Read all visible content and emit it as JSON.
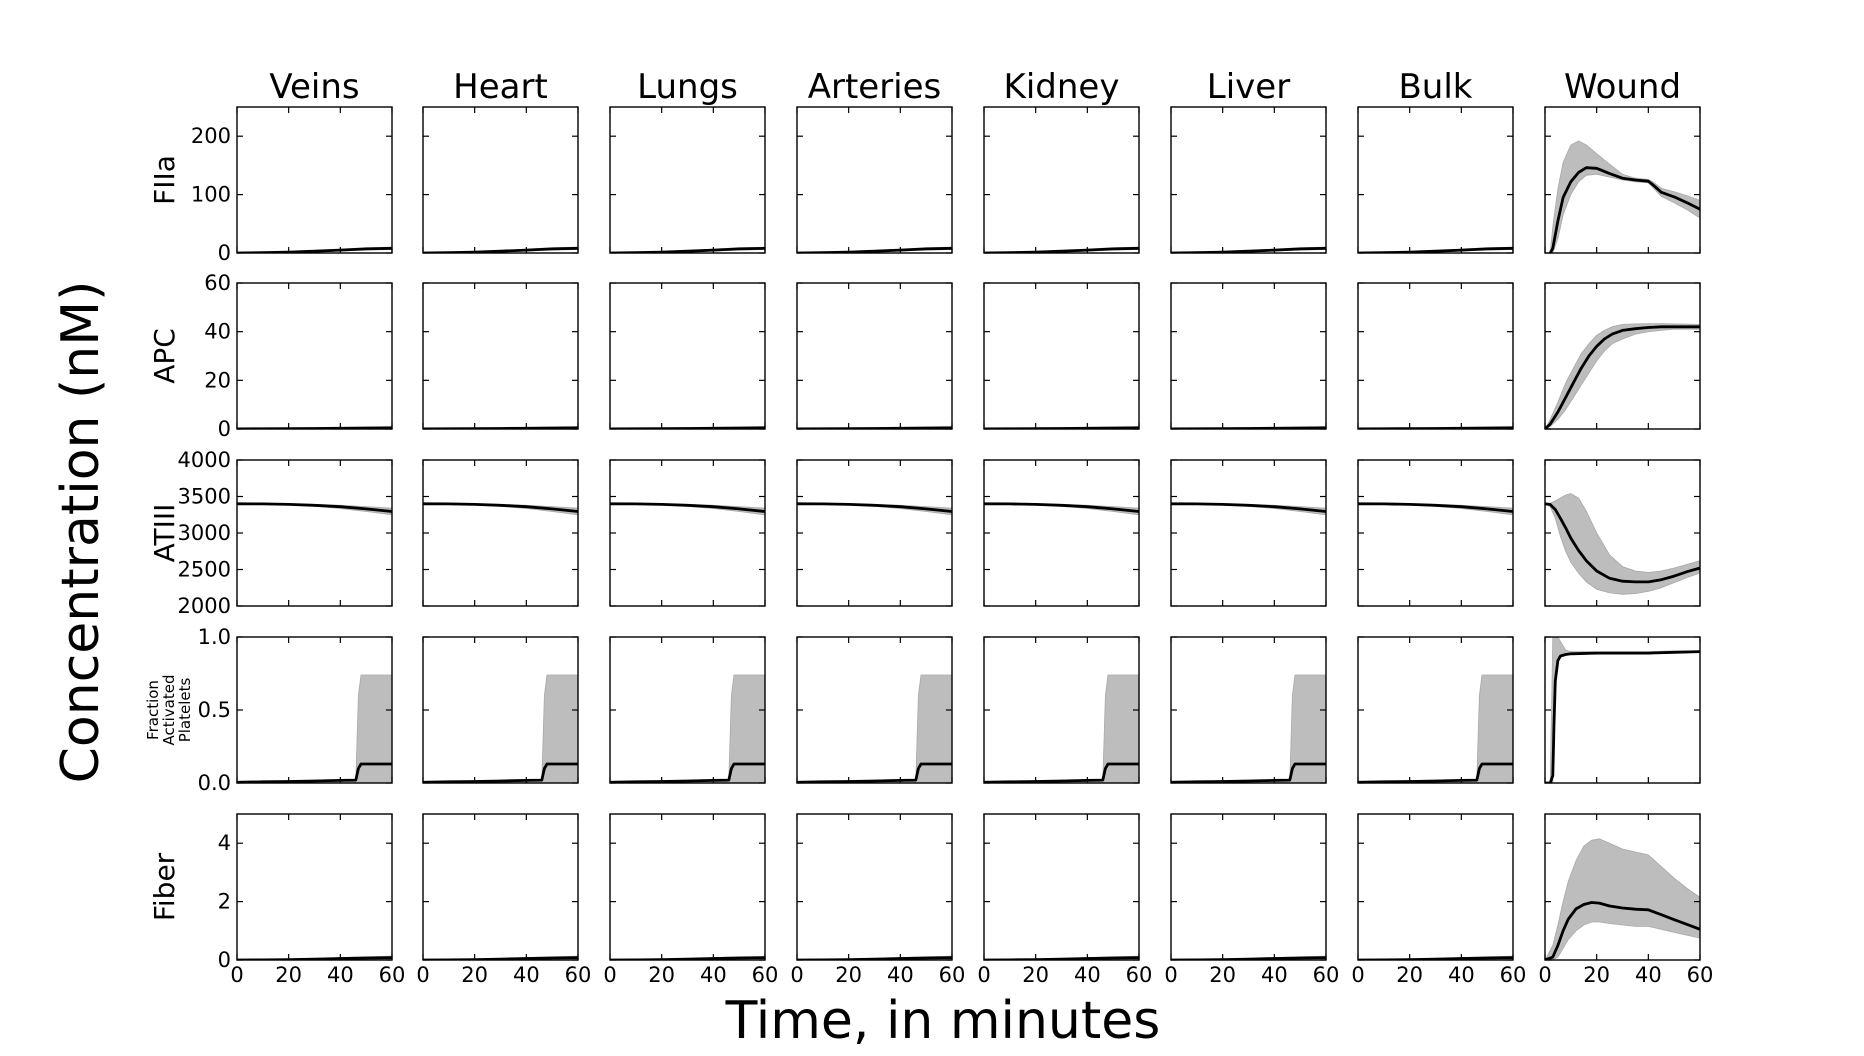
{
  "chart_data": {
    "type": "line",
    "title": "",
    "xlabel": "Time, in minutes",
    "ylabel": "Concentration (nM)",
    "columns": [
      "Veins",
      "Heart",
      "Lungs",
      "Arteries",
      "Kidney",
      "Liver",
      "Bulk",
      "Wound"
    ],
    "xlim": [
      0,
      60
    ],
    "x_ticks": [
      0,
      20,
      40,
      60
    ],
    "x_tick_labels": [
      "0",
      "20",
      "40",
      "60"
    ],
    "rows": [
      {
        "label": "FIIa",
        "ylim": [
          0,
          250
        ],
        "y_ticks": [
          0,
          100,
          200
        ],
        "y_tick_labels": [
          "0",
          "100",
          "200"
        ],
        "tissue": {
          "x": [
            0,
            10,
            20,
            30,
            40,
            50,
            60
          ],
          "mean": [
            0,
            0.5,
            1.5,
            3,
            5,
            7,
            8
          ],
          "lower": [
            0,
            0.3,
            1,
            2,
            3.5,
            5,
            6
          ],
          "upper": [
            0,
            0.8,
            2,
            4,
            6.5,
            9,
            10
          ]
        },
        "wound": {
          "x": [
            2,
            3,
            5,
            7,
            10,
            13,
            16,
            20,
            25,
            30,
            35,
            40,
            42,
            45,
            50,
            55,
            60
          ],
          "mean": [
            0,
            8,
            55,
            95,
            122,
            138,
            146,
            145,
            136,
            128,
            125,
            123,
            116,
            104,
            96,
            86,
            75
          ],
          "lower": [
            0,
            0,
            25,
            65,
            100,
            122,
            133,
            135,
            130,
            125,
            122,
            120,
            111,
            97,
            86,
            74,
            60
          ],
          "upper": [
            0,
            45,
            110,
            155,
            185,
            192,
            185,
            170,
            152,
            135,
            128,
            126,
            121,
            111,
            105,
            98,
            90
          ]
        }
      },
      {
        "label": "APC",
        "ylim": [
          0,
          60
        ],
        "y_ticks": [
          0,
          20,
          40,
          60
        ],
        "y_tick_labels": [
          "0",
          "20",
          "40",
          "60"
        ],
        "tissue": {
          "x": [
            0,
            10,
            20,
            30,
            40,
            50,
            60
          ],
          "mean": [
            0.05,
            0.1,
            0.15,
            0.2,
            0.3,
            0.4,
            0.5
          ],
          "lower": [
            0.03,
            0.06,
            0.1,
            0.14,
            0.2,
            0.28,
            0.35
          ],
          "upper": [
            0.08,
            0.15,
            0.22,
            0.3,
            0.42,
            0.55,
            0.7
          ]
        },
        "wound": {
          "x": [
            0,
            2,
            5,
            8,
            11,
            14,
            17,
            20,
            23,
            26,
            30,
            35,
            40,
            45,
            50,
            55,
            60
          ],
          "mean": [
            0,
            2,
            7,
            13,
            19,
            25,
            30,
            34,
            37,
            39,
            40.5,
            41.2,
            41.7,
            42,
            42,
            42,
            42
          ],
          "lower": [
            0,
            1,
            4,
            8,
            13,
            18,
            23,
            28,
            32,
            35,
            37,
            39,
            40,
            40.5,
            41,
            41,
            41
          ],
          "upper": [
            0,
            4,
            11,
            19,
            25,
            31,
            35,
            38.5,
            40.5,
            42,
            43,
            43.2,
            43.3,
            43.3,
            43.2,
            43.1,
            43
          ]
        }
      },
      {
        "label": "ATIII",
        "ylim": [
          2000,
          4000
        ],
        "y_ticks": [
          2000,
          2500,
          3000,
          3500,
          4000
        ],
        "y_tick_labels": [
          "2000",
          "2500",
          "3000",
          "3500",
          "4000"
        ],
        "tissue": {
          "x": [
            0,
            10,
            20,
            30,
            40,
            50,
            60
          ],
          "mean": [
            3400,
            3398,
            3392,
            3380,
            3360,
            3330,
            3295
          ],
          "lower": [
            3400,
            3395,
            3385,
            3365,
            3335,
            3295,
            3250
          ],
          "upper": [
            3400,
            3400,
            3398,
            3392,
            3380,
            3362,
            3340
          ]
        },
        "wound": {
          "x": [
            0,
            2,
            4,
            6,
            8,
            10,
            13,
            16,
            20,
            25,
            30,
            35,
            40,
            45,
            50,
            55,
            60
          ],
          "mean": [
            3400,
            3390,
            3320,
            3200,
            3070,
            2930,
            2760,
            2620,
            2480,
            2380,
            2340,
            2330,
            2330,
            2360,
            2410,
            2470,
            2520
          ],
          "lower": [
            3400,
            3360,
            3200,
            2950,
            2750,
            2600,
            2450,
            2330,
            2230,
            2180,
            2160,
            2170,
            2200,
            2250,
            2320,
            2390,
            2450
          ],
          "upper": [
            3400,
            3410,
            3440,
            3480,
            3520,
            3540,
            3480,
            3300,
            3000,
            2700,
            2540,
            2480,
            2460,
            2480,
            2520,
            2570,
            2620
          ]
        }
      },
      {
        "label": "Fraction Activated Platelets",
        "label_lines": [
          "Fraction",
          "Activated",
          "Platelets"
        ],
        "ylim": [
          0,
          1
        ],
        "y_ticks": [
          0,
          0.5,
          1
        ],
        "y_tick_labels": [
          "0.0",
          "0.5",
          "1.0"
        ],
        "tissue": {
          "x": [
            0,
            10,
            20,
            30,
            40,
            46,
            47,
            48,
            50,
            55,
            60
          ],
          "mean": [
            0.005,
            0.008,
            0.01,
            0.014,
            0.018,
            0.02,
            0.1,
            0.13,
            0.13,
            0.13,
            0.13
          ],
          "lower": [
            0,
            0,
            0,
            0,
            0,
            0,
            0,
            0,
            0,
            0,
            0
          ],
          "upper": [
            0.005,
            0.008,
            0.01,
            0.014,
            0.018,
            0.02,
            0.6,
            0.74,
            0.74,
            0.74,
            0.74
          ]
        },
        "wound": {
          "x": [
            0,
            1,
            2,
            3,
            3.5,
            4,
            5,
            6,
            8,
            10,
            20,
            30,
            40,
            50,
            60
          ],
          "mean": [
            0,
            0,
            0,
            0.05,
            0.4,
            0.7,
            0.84,
            0.87,
            0.88,
            0.885,
            0.89,
            0.89,
            0.89,
            0.895,
            0.9
          ],
          "lower": [
            0,
            0,
            0,
            0,
            0.35,
            0.65,
            0.82,
            0.86,
            0.875,
            0.88,
            0.885,
            0.885,
            0.885,
            0.89,
            0.895
          ],
          "upper": [
            0,
            0,
            0,
            1,
            1,
            1,
            1,
            0.97,
            0.91,
            0.9,
            0.9,
            0.9,
            0.9,
            0.905,
            0.905
          ]
        }
      },
      {
        "label": "Fiber",
        "ylim": [
          0,
          5
        ],
        "y_ticks": [
          0,
          2,
          4
        ],
        "y_tick_labels": [
          "0",
          "2",
          "4"
        ],
        "tissue": {
          "x": [
            0,
            10,
            20,
            30,
            40,
            50,
            60
          ],
          "mean": [
            0,
            0.005,
            0.015,
            0.03,
            0.05,
            0.07,
            0.08
          ],
          "lower": [
            0,
            0.003,
            0.01,
            0.02,
            0.03,
            0.045,
            0.05
          ],
          "upper": [
            0,
            0.008,
            0.02,
            0.045,
            0.08,
            0.11,
            0.13
          ]
        },
        "wound": {
          "x": [
            0,
            3,
            5,
            7,
            9,
            12,
            15,
            18,
            21,
            25,
            30,
            35,
            40,
            45,
            50,
            55,
            60
          ],
          "mean": [
            0,
            0.1,
            0.5,
            1.0,
            1.4,
            1.75,
            1.9,
            1.97,
            1.95,
            1.85,
            1.78,
            1.74,
            1.72,
            1.55,
            1.38,
            1.22,
            1.05
          ],
          "lower": [
            0,
            0,
            0.1,
            0.4,
            0.7,
            1.0,
            1.2,
            1.3,
            1.3,
            1.25,
            1.2,
            1.15,
            1.15,
            1.05,
            0.95,
            0.85,
            0.75
          ],
          "upper": [
            0,
            0.5,
            1.2,
            2.0,
            2.7,
            3.4,
            3.9,
            4.1,
            4.15,
            4.0,
            3.8,
            3.7,
            3.6,
            3.2,
            2.8,
            2.45,
            2.15
          ]
        }
      }
    ]
  }
}
